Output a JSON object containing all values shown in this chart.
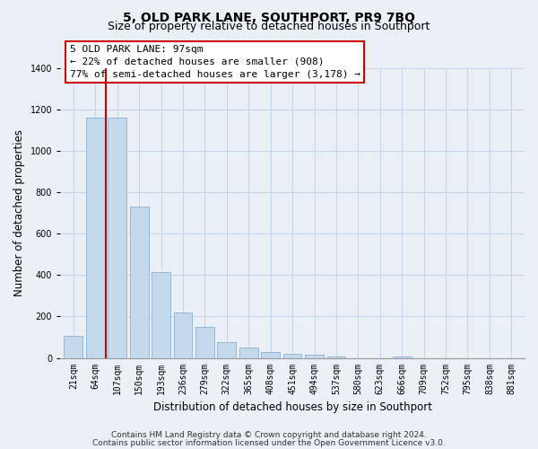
{
  "title": "5, OLD PARK LANE, SOUTHPORT, PR9 7BQ",
  "subtitle": "Size of property relative to detached houses in Southport",
  "xlabel": "Distribution of detached houses by size in Southport",
  "ylabel": "Number of detached properties",
  "categories": [
    "21sqm",
    "64sqm",
    "107sqm",
    "150sqm",
    "193sqm",
    "236sqm",
    "279sqm",
    "322sqm",
    "365sqm",
    "408sqm",
    "451sqm",
    "494sqm",
    "537sqm",
    "580sqm",
    "623sqm",
    "666sqm",
    "709sqm",
    "752sqm",
    "795sqm",
    "838sqm",
    "881sqm"
  ],
  "values": [
    108,
    1162,
    1162,
    730,
    415,
    220,
    148,
    75,
    50,
    30,
    20,
    15,
    8,
    0,
    0,
    8,
    0,
    0,
    0,
    0,
    0
  ],
  "bar_color": "#c5d9ec",
  "bar_edge_color": "#8ab0d0",
  "vline_x": 1.5,
  "vline_color": "#cc0000",
  "ylim": [
    0,
    1400
  ],
  "yticks": [
    0,
    200,
    400,
    600,
    800,
    1000,
    1200,
    1400
  ],
  "annotation_title": "5 OLD PARK LANE: 97sqm",
  "annotation_line1": "← 22% of detached houses are smaller (908)",
  "annotation_line2": "77% of semi-detached houses are larger (3,178) →",
  "annotation_box_color": "#ffffff",
  "annotation_box_edge": "#cc0000",
  "footer_line1": "Contains HM Land Registry data © Crown copyright and database right 2024.",
  "footer_line2": "Contains public sector information licensed under the Open Government Licence v3.0.",
  "background_color": "#eaf0f6",
  "plot_background": "#eaf0f6",
  "grid_color": "#c8d8ea",
  "title_fontsize": 10,
  "subtitle_fontsize": 9,
  "axis_label_fontsize": 8.5,
  "tick_fontsize": 7,
  "footer_fontsize": 6.5,
  "annotation_fontsize": 8
}
